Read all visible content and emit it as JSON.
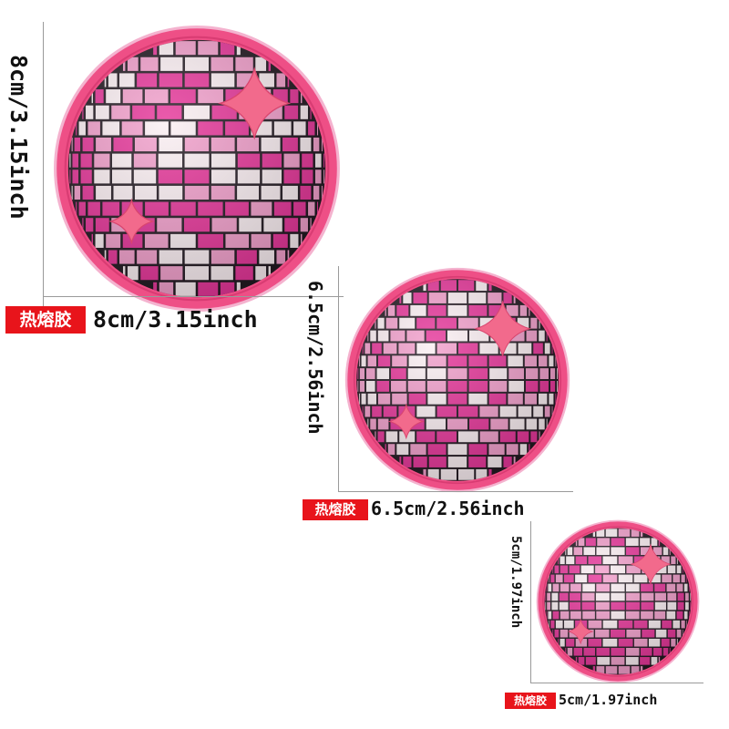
{
  "colors": {
    "rim": "#ee4f86",
    "rim_dark": "#d93c73",
    "tile_pink": "#e6379a",
    "tile_glitter": "#f2a0cc",
    "tile_white": "#fbeff3",
    "grout": "#231a22",
    "star": "#f26a8c",
    "badge": "#e8141b"
  },
  "patches": [
    {
      "id": "large",
      "badge": "热熔胶",
      "width_label": "8cm/3.15inch",
      "height_label": "8cm/3.15inch"
    },
    {
      "id": "medium",
      "badge": "热熔胶",
      "width_label": "6.5cm/2.56inch",
      "height_label": "6.5cm/2.56inch"
    },
    {
      "id": "small",
      "badge": "热熔胶",
      "width_label": "5cm/1.97inch",
      "height_label": "5cm/1.97inch"
    }
  ]
}
